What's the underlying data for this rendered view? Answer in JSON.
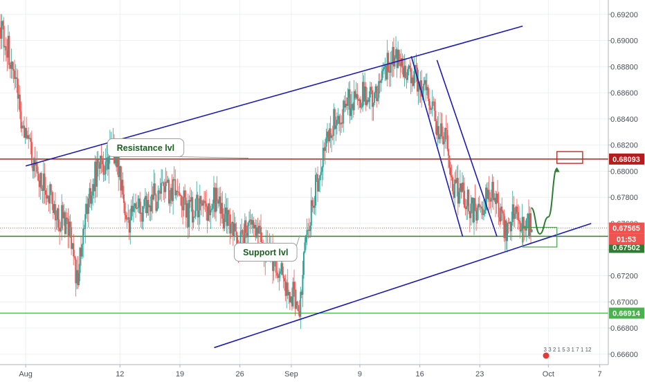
{
  "chart_data": {
    "type": "candlestick",
    "xlim": [
      "2019-07-29",
      "2019-10-08"
    ],
    "ylim": [
      0.6652,
      0.6931
    ],
    "y_ticks": [
      "0.69200",
      "0.69000",
      "0.68800",
      "0.68600",
      "0.68400",
      "0.68200",
      "0.68000",
      "0.67800",
      "0.67600",
      "0.67400",
      "0.67200",
      "0.67000",
      "0.66800",
      "0.66600"
    ],
    "x_ticks": [
      {
        "label": "Aug",
        "date": "2019-08-01"
      },
      {
        "label": "12",
        "date": "2019-08-12"
      },
      {
        "label": "19",
        "date": "2019-08-19"
      },
      {
        "label": "26",
        "date": "2019-08-26"
      },
      {
        "label": "Sep",
        "date": "2019-09-01"
      },
      {
        "label": "9",
        "date": "2019-09-09"
      },
      {
        "label": "16",
        "date": "2019-09-16"
      },
      {
        "label": "23",
        "date": "2019-09-23"
      },
      {
        "label": "Oct",
        "date": "2019-10-01"
      },
      {
        "label": "7",
        "date": "2019-10-07"
      }
    ],
    "price_path": [
      [
        "2019-07-29",
        0.691
      ],
      [
        "2019-07-30",
        0.6895
      ],
      [
        "2019-07-31",
        0.686
      ],
      [
        "2019-08-01",
        0.6825
      ],
      [
        "2019-08-02",
        0.6805
      ],
      [
        "2019-08-05",
        0.6765
      ],
      [
        "2019-08-06",
        0.676
      ],
      [
        "2019-08-07",
        0.6715
      ],
      [
        "2019-08-08",
        0.676
      ],
      [
        "2019-08-09",
        0.6795
      ],
      [
        "2019-08-11",
        0.6815
      ],
      [
        "2019-08-12",
        0.68
      ],
      [
        "2019-08-13",
        0.676
      ],
      [
        "2019-08-14",
        0.6775
      ],
      [
        "2019-08-15",
        0.677
      ],
      [
        "2019-08-16",
        0.678
      ],
      [
        "2019-08-19",
        0.6785
      ],
      [
        "2019-08-20",
        0.6768
      ],
      [
        "2019-08-21",
        0.6775
      ],
      [
        "2019-08-22",
        0.677
      ],
      [
        "2019-08-23",
        0.678
      ],
      [
        "2019-08-26",
        0.6745
      ],
      [
        "2019-08-27",
        0.676
      ],
      [
        "2019-08-28",
        0.6755
      ],
      [
        "2019-08-29",
        0.674
      ],
      [
        "2019-08-30",
        0.673
      ],
      [
        "2019-09-02",
        0.6698
      ],
      [
        "2019-09-03",
        0.676
      ],
      [
        "2019-09-04",
        0.679
      ],
      [
        "2019-09-05",
        0.682
      ],
      [
        "2019-09-06",
        0.684
      ],
      [
        "2019-09-09",
        0.686
      ],
      [
        "2019-09-10",
        0.6855
      ],
      [
        "2019-09-11",
        0.6862
      ],
      [
        "2019-09-12",
        0.688
      ],
      [
        "2019-09-13",
        0.6885
      ],
      [
        "2019-09-16",
        0.687
      ],
      [
        "2019-09-17",
        0.6855
      ],
      [
        "2019-09-18",
        0.6835
      ],
      [
        "2019-09-19",
        0.683
      ],
      [
        "2019-09-20",
        0.679
      ],
      [
        "2019-09-23",
        0.6765
      ],
      [
        "2019-09-24",
        0.679
      ],
      [
        "2019-09-25",
        0.678
      ],
      [
        "2019-09-26",
        0.6755
      ],
      [
        "2019-09-27",
        0.6765
      ],
      [
        "2019-09-29",
        0.6758
      ]
    ],
    "horizontal_levels": [
      {
        "price": 0.68093,
        "label": "0.68093",
        "color": "#b71c1c"
      },
      {
        "price": 0.67502,
        "label": "0.67502",
        "color": "#2e7d32"
      },
      {
        "price": 0.66914,
        "label": "0.66914",
        "color": "#4caf50"
      }
    ],
    "current_price": {
      "price": 0.67565,
      "label": "0.67565",
      "countdown": "01:53",
      "color": "#ef5350"
    },
    "trendlines": [
      {
        "from": [
          "2019-08-01",
          0.6804
        ],
        "to": [
          "2019-09-28",
          0.6911
        ]
      },
      {
        "from": [
          "2019-08-23",
          0.6665
        ],
        "to": [
          "2019-10-06",
          0.676
        ]
      },
      {
        "from": [
          "2019-09-15",
          0.6888
        ],
        "to": [
          "2019-09-21",
          0.675
        ]
      },
      {
        "from": [
          "2019-09-18",
          0.6885
        ],
        "to": [
          "2019-09-25",
          0.675
        ]
      }
    ],
    "projection_path": [
      [
        "2019-09-29",
        0.6772
      ],
      [
        "2019-09-30",
        0.6752
      ],
      [
        "2019-10-01",
        0.6765
      ],
      [
        "2019-10-02",
        0.6802
      ]
    ],
    "target_box": {
      "x": [
        "2019-10-02",
        "2019-10-05"
      ],
      "y": [
        0.6806,
        0.6815
      ]
    },
    "zone_box": {
      "x": [
        "2019-09-28",
        "2019-10-02"
      ],
      "y": [
        0.6742,
        0.6757
      ]
    },
    "annotations": [
      {
        "text": "Resistance lvl",
        "date": "2019-08-15",
        "price": 0.6818,
        "tail": [
          "2019-08-27",
          0.681
        ]
      },
      {
        "text": "Support lvl",
        "date": "2019-08-29",
        "price": 0.6738,
        "tail": [
          "2019-09-02",
          0.6751
        ]
      }
    ],
    "colors": {
      "up": "#26a69a",
      "down": "#ef5350",
      "trendline": "#1a1ab0",
      "projection": "#2e7d32"
    },
    "mini_status": "3 3 2 1 5  3 1 7 1 12",
    "grid": true
  }
}
